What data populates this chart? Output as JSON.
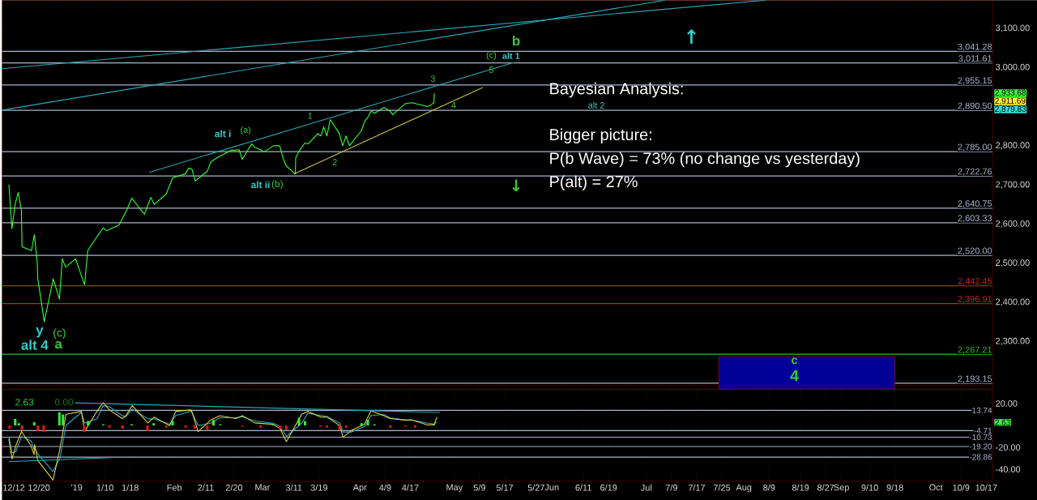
{
  "chart_data": [
    {
      "type": "line",
      "x": [
        "2018-12-10T11:00",
        "2018-12-11T10:00",
        "2018-12-12T10:00",
        "2018-12-13T10:00",
        "2018-12-14T10:00",
        "2018-12-14T15:00",
        "2018-12-17T15:00",
        "2018-12-18T13:00",
        "2018-12-19T11:00",
        "2018-12-19T15:00",
        "2018-12-20T15:00",
        "2018-12-21T16:00",
        "2018-12-24T13:00",
        "2018-12-26T12:00",
        "2018-12-27T10:00",
        "2018-12-28T11:00",
        "2018-12-31T15:00",
        "2019-01-03T12:00",
        "2019-01-04T12:00",
        "2019-01-07T13:00",
        "2019-01-09T10:00",
        "2019-01-10T12:00",
        "2019-01-14T11:00",
        "2019-01-15T12:00",
        "2019-01-16T15:00",
        "2019-01-18T12:00",
        "2019-01-22T12:00",
        "2019-01-24T13:00",
        "2019-01-25T15:00",
        "2019-01-29T11:00",
        "2019-01-31T11:00",
        "2019-02-04T12:00",
        "2019-02-05T14:00",
        "2019-02-06T15:00",
        "2019-02-07T15:00",
        "2019-02-11T12:00",
        "2019-02-12T15:00",
        "2019-02-14T14:00",
        "2019-02-19T10:00",
        "2019-02-19T15:00",
        "2019-02-21T14:00",
        "2019-02-22T14:00",
        "2019-02-25T14:00",
        "2019-02-26T13:00",
        "2019-02-28T10:00",
        "2019-03-01T11:00",
        "2019-03-04T14:00",
        "2019-03-06T12:00",
        "2019-03-07T13:00",
        "2019-03-08T12:00",
        "2019-03-11T11:00",
        "2019-03-11T14:00",
        "2019-03-12T15:00",
        "2019-03-14T12:00",
        "2019-03-15T14:00",
        "2019-03-18T15:00",
        "2019-03-19T14:00",
        "2019-03-20T12:00",
        "2019-03-21T12:00",
        "2019-03-22T13:00",
        "2019-03-25T11:00",
        "2019-03-26T12:00",
        "2019-03-27T14:00",
        "2019-03-28T15:00",
        "2019-04-01T10:00",
        "2019-04-02T12:00",
        "2019-04-03T13:00",
        "2019-04-04T14:00",
        "2019-04-05T15:00",
        "2019-04-08T15:00",
        "2019-04-10T11:00",
        "2019-04-11T10:00",
        "2019-04-12T11:00",
        "2019-04-15T12:00",
        "2019-04-17T12:00",
        "2019-04-22T11:00",
        "2019-04-23T12:00",
        "2019-04-24T12:00",
        "2019-04-24T15:00"
      ],
      "series": [
        {
          "color": "#33ff33",
          "values": [
            2701,
            2588,
            2650,
            2681,
            2635,
            2542,
            2532,
            2573,
            2501,
            2460,
            2408,
            2350,
            2460,
            2408,
            2511,
            2490,
            2511,
            2445,
            2532,
            2569,
            2590,
            2583,
            2598,
            2614,
            2631,
            2666,
            2625,
            2668,
            2650,
            2677,
            2718,
            2728,
            2743,
            2740,
            2710,
            2735,
            2759,
            2769,
            2790,
            2788,
            2790,
            2765,
            2805,
            2796,
            2790,
            2784,
            2800,
            2800,
            2769,
            2749,
            2728,
            2769,
            2786,
            2807,
            2805,
            2831,
            2825,
            2848,
            2825,
            2867,
            2831,
            2800,
            2825,
            2800,
            2838,
            2862,
            2873,
            2889,
            2883,
            2898,
            2889,
            2879,
            2887,
            2908,
            2910,
            2900,
            2904,
            2910,
            2934
          ]
        },
        {
          "type": "line",
          "color": "#2aa6b8",
          "x": [
            "2018-12-08T06:00",
            "2019-08-08"
          ],
          "values": [
            2997,
            3172
          ]
        },
        {
          "type": "line",
          "color": "#2aa6b8",
          "x": [
            "2018-12-08T06:00",
            "2019-07-07"
          ],
          "values": [
            2891,
            3172
          ]
        },
        {
          "type": "line",
          "color": "#2aa6b8",
          "x": [
            "2019-01-24",
            "2019-05-20"
          ],
          "values": [
            2732,
            3013
          ]
        },
        {
          "type": "line",
          "color": "#c8c040",
          "x": [
            "2019-03-11",
            "2019-05-10"
          ],
          "values": [
            2728,
            2949
          ]
        },
        {
          "type": "area",
          "color": "#000099",
          "x": [
            "2019-07-24",
            "2019-09-18"
          ],
          "values": [
            2262,
            2262
          ]
        }
      ],
      "xlim": [
        "2018-12-08T06:00",
        "2019-10-19"
      ],
      "ylim": [
        2178,
        3172
      ],
      "yticks": [
        {
          "value": 2300,
          "label": "2,300.00"
        },
        {
          "value": 2400,
          "label": "2,400.00"
        },
        {
          "value": 2500,
          "label": "2,500.00"
        },
        {
          "value": 2600,
          "label": "2,600.00"
        },
        {
          "value": 2700,
          "label": "2,700.00"
        },
        {
          "value": 2800,
          "label": "2,800.00"
        },
        {
          "value": 2900,
          "label": null
        },
        {
          "value": 3000,
          "label": "3,000.00"
        },
        {
          "value": 3100,
          "label": "3,100.00"
        }
      ],
      "ref_lines": [
        {
          "axis": "y",
          "value": 3041.28,
          "label": "3,041.28",
          "color": "#a9b4d0"
        },
        {
          "axis": "y",
          "value": 3011.61,
          "label": "3,011.61",
          "color": "#a9b4d0"
        },
        {
          "axis": "y",
          "value": 2955.15,
          "label": "2,955.15",
          "color": "#a9b4d0"
        },
        {
          "axis": "y",
          "value": 2890.5,
          "label": "2,890.50",
          "color": "#a9b4d0"
        },
        {
          "axis": "y",
          "value": 2785.0,
          "label": "2,785.00",
          "color": "#a9b4d0"
        },
        {
          "axis": "y",
          "value": 2722.76,
          "label": "2,722.76",
          "color": "#a9b4d0"
        },
        {
          "axis": "y",
          "value": 2640.75,
          "label": "2,640.75",
          "color": "#a9b4d0"
        },
        {
          "axis": "y",
          "value": 2603.33,
          "label": "2,603.33",
          "color": "#a9b4d0"
        },
        {
          "axis": "y",
          "value": 2520.0,
          "label": "2,520.00",
          "color": "#a9b4d0"
        },
        {
          "axis": "y",
          "value": 2442.45,
          "label": "2,442.45",
          "color": "#cc2222"
        },
        {
          "axis": "y",
          "value": 2396.91,
          "label": "2,396.91",
          "color": "#cc2222"
        },
        {
          "axis": "y",
          "value": 2267.21,
          "label": "2,267.21",
          "color": "#33bb33"
        },
        {
          "axis": "y",
          "value": 2193.15,
          "label": "2,193.15",
          "color": "#a9b4d0"
        }
      ],
      "annotations": [
        "b",
        "(c)",
        "alt 1",
        "5",
        "3",
        "4",
        "alt 2",
        "1",
        "2",
        "alt i",
        "(a)",
        "alt ii",
        "(b)",
        "y",
        "(c)",
        "alt 4",
        "a",
        "c",
        "4",
        "↑",
        "↓",
        "Bayesian Analysis:",
        "Bigger picture:",
        "P(b Wave) = 73% (no change vs yesterday)",
        "P(alt) = 27%",
        "2,933.68",
        "2,911.69",
        "2,879.83"
      ],
      "tick_labels": "y"
    },
    {
      "type": "line",
      "x": [
        "2018-12-10T10:00",
        "2018-12-11T11:00",
        "2018-12-12T15:00",
        "2018-12-14T11:00",
        "2018-12-17T12:00",
        "2018-12-18T11:00",
        "2018-12-18T15:00",
        "2018-12-19T15:00",
        "2018-12-24T11:00",
        "2018-12-26T16:00",
        "2018-12-28T14:00",
        "2019-01-02T12:00",
        "2019-01-03T12:00",
        "2019-01-07T10:00",
        "2019-01-09T10:00",
        "2019-01-11T10:00",
        "2019-01-15T11:00",
        "2019-01-16T15:00",
        "2019-01-18T15:00",
        "2019-01-23T15:00",
        "2019-01-25T15:00",
        "2019-01-30T12:00",
        "2019-02-01T12:00",
        "2019-02-06T10:00",
        "2019-02-08T14:00",
        "2019-02-12T14:00",
        "2019-02-15T11:00",
        "2019-02-20T15:00",
        "2019-02-22T15:00",
        "2019-02-26T14:00",
        "2019-03-04T10:00",
        "2019-03-06T14:00",
        "2019-03-08T15:00",
        "2019-03-13T11:00",
        "2019-03-15T11:00",
        "2019-03-19T15:00",
        "2019-03-21T15:00",
        "2019-03-25T15:00",
        "2019-03-26T14:00",
        "2019-03-29T10:00",
        "2019-04-02T10:00",
        "2019-04-04T12:00",
        "2019-04-08T14:00",
        "2019-04-10T13:00",
        "2019-04-15T11:00",
        "2019-04-17T11:00",
        "2019-04-22T14:00",
        "2019-04-24T14:00",
        "2019-04-25T12:00"
      ],
      "series": [
        {
          "type": "bar",
          "color": "#33ee33",
          "x": [
            "2018-12-12T11:00",
            "2018-12-13T14:00",
            "2018-12-18T12:00",
            "2018-12-26T12:00",
            "2018-12-27T15:00",
            "2019-01-04T14:00",
            "2019-01-09T10:00",
            "2019-01-18T11:00",
            "2019-01-25T11:00",
            "2019-01-31T11:00",
            "2019-02-13T11:00",
            "2019-02-15T15:00",
            "2019-03-04T10:00",
            "2019-03-12T15:00",
            "2019-03-14T13:00",
            "2019-04-01T12:00",
            "2019-04-03T12:00",
            "2019-04-05T15:00",
            "2019-04-24T11:00"
          ],
          "values": [
            6,
            2,
            3,
            12,
            10,
            4,
            1,
            1,
            2,
            4,
            5,
            1,
            1,
            7,
            4,
            2,
            5,
            1,
            1
          ]
        },
        {
          "type": "bar",
          "color": "#ee1111",
          "x": [
            "2018-12-10T16:00",
            "2018-12-14T14:00",
            "2018-12-19T15:00",
            "2018-12-21T12:00",
            "2019-01-03T10:00",
            "2019-01-11T10:00",
            "2019-01-15T14:00",
            "2019-01-23T11:00",
            "2019-01-29T11:00",
            "2019-02-04T14:00",
            "2019-02-07T12:00",
            "2019-02-11T12:00",
            "2019-02-22T15:00",
            "2019-02-28T11:00",
            "2019-03-06T14:00",
            "2019-03-08T14:00",
            "2019-03-19T11:00",
            "2019-03-21T11:00",
            "2019-03-25T11:00",
            "2019-03-27T14:00",
            "2019-04-10T14:00",
            "2019-04-15T11:00",
            "2019-04-18T12:00"
          ],
          "values": [
            -3,
            -4,
            -5,
            -6,
            -6,
            -2,
            -3,
            -5,
            -2,
            -2,
            -3,
            -4,
            -1,
            -2,
            -3,
            -4,
            -1,
            -2,
            -4,
            -2,
            -2,
            -1,
            -2
          ]
        },
        {
          "color": "#2aa6c8",
          "values": [
            -10,
            -25,
            -24,
            -10,
            -14,
            -22,
            -20,
            -26,
            -42,
            -30,
            0,
            12,
            2,
            6,
            18,
            17,
            9,
            8,
            15,
            6,
            6,
            1,
            9,
            13,
            0,
            2,
            7,
            7,
            8,
            4,
            2,
            -1,
            -10,
            2,
            11,
            9,
            8,
            2,
            -6,
            -6,
            -1,
            9,
            10,
            7,
            5,
            5,
            2,
            1,
            3
          ]
        },
        {
          "color": "#e0d040",
          "values": [
            -12.1,
            -30.5,
            -18.7,
            -5.6,
            -18.7,
            -26.6,
            -17.4,
            -31.8,
            -49.7,
            -21.3,
            10.2,
            12.8,
            -5.6,
            12.8,
            20.7,
            14.1,
            6.3,
            8.9,
            18.1,
            2.3,
            7.6,
            -0.3,
            12.8,
            14.1,
            -5.6,
            4.9,
            8.9,
            6.3,
            8.9,
            2.3,
            1.0,
            -2.9,
            -14.8,
            10.2,
            12.8,
            7.6,
            7.6,
            -0.3,
            -10.8,
            -4.3,
            1.0,
            13.3,
            8.9,
            6.3,
            4.9,
            4.9,
            0.4,
            1.0,
            7.6
          ]
        },
        {
          "type": "line",
          "color": "#2aa6b8",
          "x": [
            "2018-12-31T10:00",
            "2019-04-26T10:00"
          ],
          "values": [
            20.6,
            11.8
          ]
        },
        {
          "type": "line",
          "color": "#2aa6b8",
          "x": [
            "2018-12-10T10:00",
            "2019-01-11T14:00"
          ],
          "values": [
            -33.1,
            -29.4
          ]
        }
      ],
      "xlim": [
        "2018-12-08T06:00",
        "2019-10-19"
      ],
      "ylim": [
        -51,
        33
      ],
      "xticks": [
        {
          "value": "2018-12-12",
          "label": "12/12"
        },
        {
          "value": "2018-12-20",
          "label": "12/20"
        },
        {
          "value": "2019-01-01",
          "label": "'19"
        },
        {
          "value": "2019-01-10",
          "label": "1/10"
        },
        {
          "value": "2019-01-18",
          "label": "1/18"
        },
        {
          "value": "2019-02-01",
          "label": "Feb"
        },
        {
          "value": "2019-02-11",
          "label": "2/11"
        },
        {
          "value": "2019-02-20",
          "label": "2/20"
        },
        {
          "value": "2019-03-01",
          "label": "Mar"
        },
        {
          "value": "2019-03-11",
          "label": "3/11"
        },
        {
          "value": "2019-03-19",
          "label": "3/19"
        },
        {
          "value": "2019-04-01",
          "label": "Apr"
        },
        {
          "value": "2019-04-09",
          "label": "4/9"
        },
        {
          "value": "2019-04-17",
          "label": "4/17"
        },
        {
          "value": "2019-05-01",
          "label": "May"
        },
        {
          "value": "2019-05-09",
          "label": "5/9"
        },
        {
          "value": "2019-05-17",
          "label": "5/17"
        },
        {
          "value": "2019-05-27",
          "label": "5/27"
        },
        {
          "value": "2019-06-01",
          "label": "Jun"
        },
        {
          "value": "2019-06-11",
          "label": "6/11"
        },
        {
          "value": "2019-06-19",
          "label": "6/19"
        },
        {
          "value": "2019-07-01",
          "label": "Jul"
        },
        {
          "value": "2019-07-09",
          "label": "7/9"
        },
        {
          "value": "2019-07-17",
          "label": "7/17"
        },
        {
          "value": "2019-07-25",
          "label": "7/25"
        },
        {
          "value": "2019-08-01",
          "label": "Aug"
        },
        {
          "value": "2019-08-09",
          "label": "8/9"
        },
        {
          "value": "2019-08-19",
          "label": "8/19"
        },
        {
          "value": "2019-08-27",
          "label": "8/27"
        },
        {
          "value": "2019-09-01",
          "label": "Sep"
        },
        {
          "value": "2019-09-10",
          "label": "9/10"
        },
        {
          "value": "2019-09-18",
          "label": "9/18"
        },
        {
          "value": "2019-10-01",
          "label": "Oct"
        },
        {
          "value": "2019-10-09",
          "label": "10/9"
        },
        {
          "value": "2019-10-17",
          "label": "10/17"
        }
      ],
      "yticks": [
        {
          "value": 20,
          "label": "20.00"
        },
        {
          "value": 0,
          "label": null
        },
        {
          "value": -20,
          "label": "-20.00"
        },
        {
          "value": -40,
          "label": "-40.00"
        }
      ],
      "ref_lines": [
        {
          "axis": "y",
          "value": 13.74,
          "label": "13.74",
          "color": "#a9b4d0"
        },
        {
          "axis": "y",
          "value": -4.71,
          "label": "-4.71",
          "color": "#a9b4d0"
        },
        {
          "axis": "y",
          "value": -10.73,
          "label": "-10.73",
          "color": "#a9b4d0"
        },
        {
          "axis": "y",
          "value": -19.2,
          "label": "-19.20",
          "color": "#a9b4d0"
        },
        {
          "axis": "y",
          "value": -28.86,
          "label": "-28.86",
          "color": "#a9b4d0"
        }
      ],
      "annotations": [
        "2.63",
        "0.00",
        "2.63"
      ],
      "grid": "x"
    }
  ]
}
